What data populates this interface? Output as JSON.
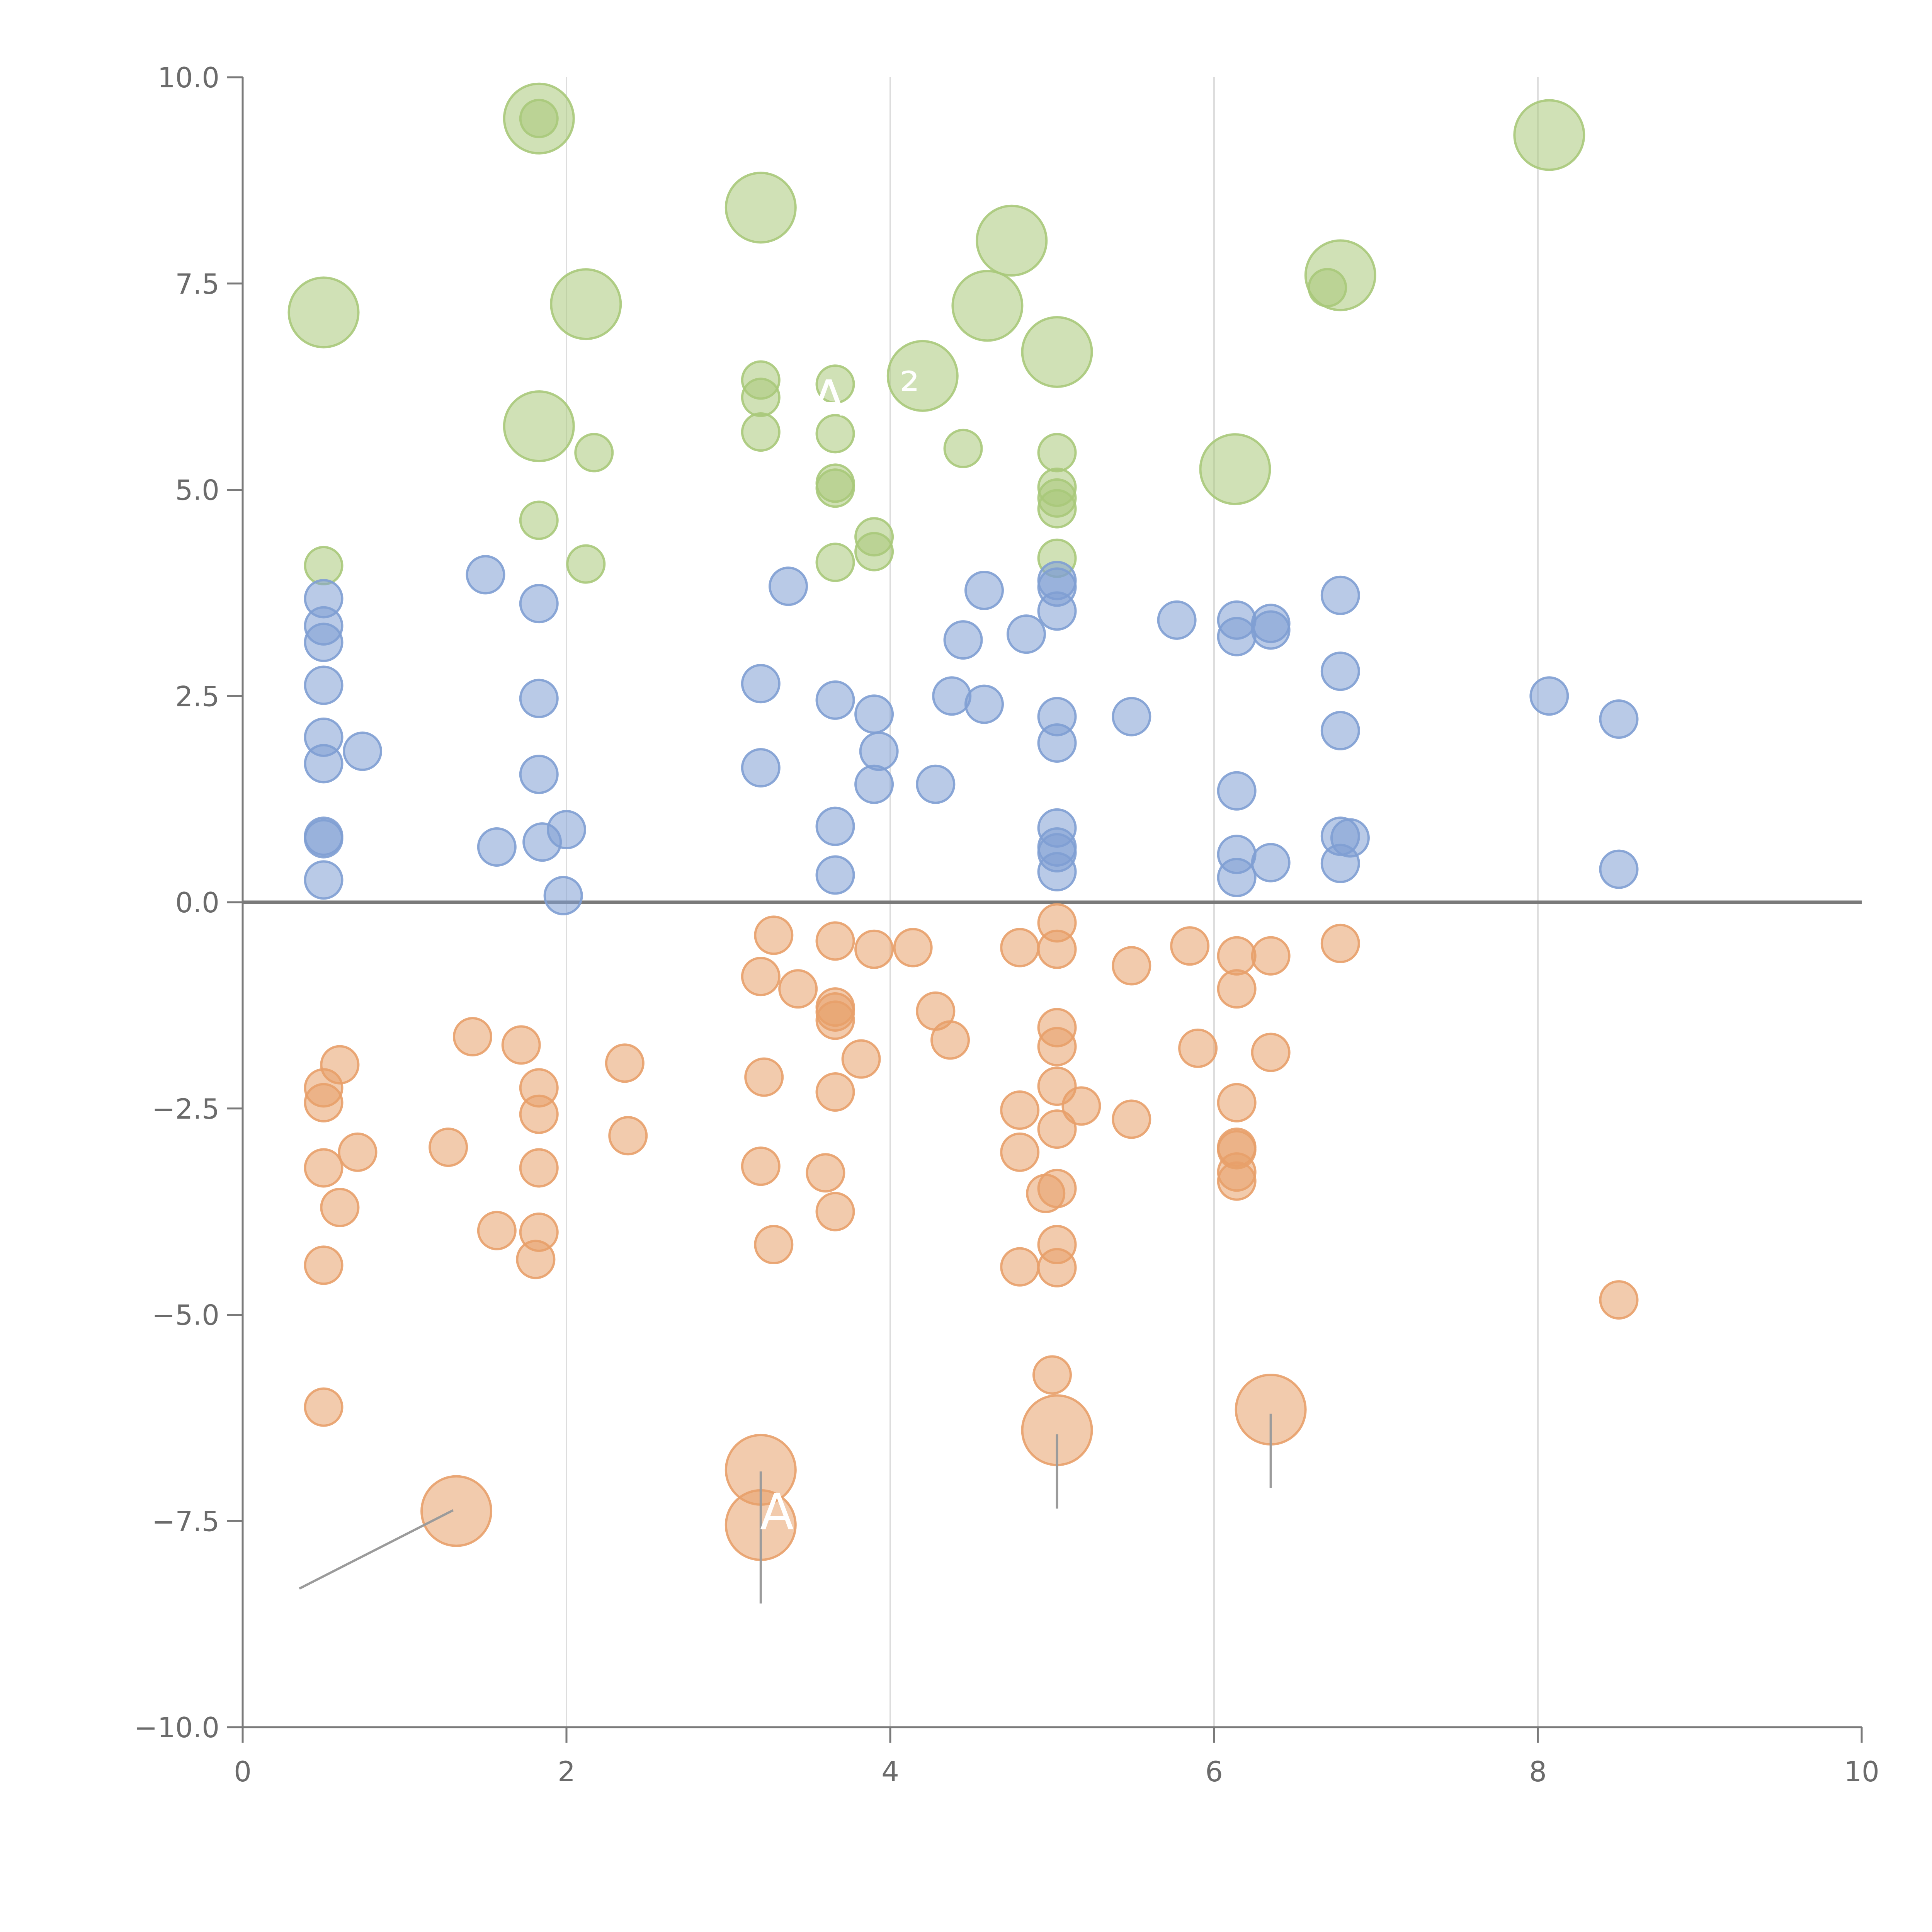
{
  "chart_data": {
    "type": "scatter",
    "title": "",
    "xlabel": "",
    "ylabel": "",
    "xlim": [
      0,
      10
    ],
    "ylim": [
      -10,
      10
    ],
    "x_ticks": [
      0,
      2,
      4,
      6,
      8,
      10
    ],
    "x_tick_labels": [
      "0",
      "2",
      "4",
      "6",
      "8",
      "10"
    ],
    "y_ticks": [
      10,
      7.5,
      5,
      2.5,
      0,
      -2.5,
      -5,
      -7.5,
      -10
    ],
    "y_tick_labels": [
      "10.0",
      "7.5",
      "5.0",
      "2.5",
      "0.0",
      "−2.5",
      "−5.0",
      "−7.5",
      "−10.0"
    ],
    "vertical_gridlines_at": [
      2,
      4,
      6,
      8
    ],
    "zero_line": 0,
    "colors": {
      "green": "#a9c97a",
      "blue": "#7f9fd3",
      "orange": "#e8a06a",
      "axis": "#7a7a7a",
      "grid": "#dddddd",
      "zero_line": "#7a7a7a",
      "leader": "#9b9b9b",
      "label_text": "#ffffff"
    },
    "point_labels": [
      {
        "text": "A",
        "x": 3.62,
        "y": 5.9
      },
      {
        "text": "²",
        "x": 4.12,
        "y": 6.0
      },
      {
        "text": "A",
        "x": 3.3,
        "y": -7.6
      }
    ],
    "series": [
      {
        "name": "green",
        "color": "#a9c97a",
        "points": [
          {
            "x": 0.5,
            "y": 7.15,
            "s": "L"
          },
          {
            "x": 1.83,
            "y": 9.5,
            "s": "L"
          },
          {
            "x": 1.83,
            "y": 9.5,
            "s": "S"
          },
          {
            "x": 2.12,
            "y": 7.25,
            "s": "L"
          },
          {
            "x": 1.83,
            "y": 5.77,
            "s": "L"
          },
          {
            "x": 3.2,
            "y": 8.42,
            "s": "L"
          },
          {
            "x": 4.2,
            "y": 6.38,
            "s": "L"
          },
          {
            "x": 4.6,
            "y": 7.23,
            "s": "L"
          },
          {
            "x": 4.75,
            "y": 8.02,
            "s": "L"
          },
          {
            "x": 5.03,
            "y": 6.67,
            "s": "L"
          },
          {
            "x": 6.13,
            "y": 5.25,
            "s": "L"
          },
          {
            "x": 6.78,
            "y": 7.6,
            "s": "L"
          },
          {
            "x": 8.07,
            "y": 9.3,
            "s": "L"
          },
          {
            "x": 6.7,
            "y": 7.45,
            "s": "S"
          },
          {
            "x": 0.5,
            "y": 4.08,
            "s": "S"
          },
          {
            "x": 1.83,
            "y": 4.63,
            "s": "S"
          },
          {
            "x": 2.17,
            "y": 5.45,
            "s": "S"
          },
          {
            "x": 2.12,
            "y": 4.1,
            "s": "S"
          },
          {
            "x": 3.2,
            "y": 6.33,
            "s": "S"
          },
          {
            "x": 3.2,
            "y": 6.12,
            "s": "S"
          },
          {
            "x": 3.2,
            "y": 5.7,
            "s": "S"
          },
          {
            "x": 3.66,
            "y": 6.28,
            "s": "S"
          },
          {
            "x": 3.66,
            "y": 5.68,
            "s": "S"
          },
          {
            "x": 3.66,
            "y": 5.08,
            "s": "S"
          },
          {
            "x": 3.66,
            "y": 5.02,
            "s": "S"
          },
          {
            "x": 3.66,
            "y": 4.12,
            "s": "S"
          },
          {
            "x": 3.9,
            "y": 4.43,
            "s": "S"
          },
          {
            "x": 3.9,
            "y": 4.25,
            "s": "S"
          },
          {
            "x": 4.45,
            "y": 5.5,
            "s": "S"
          },
          {
            "x": 5.03,
            "y": 5.45,
            "s": "S"
          },
          {
            "x": 5.03,
            "y": 5.03,
            "s": "S"
          },
          {
            "x": 5.03,
            "y": 4.9,
            "s": "S"
          },
          {
            "x": 5.03,
            "y": 4.77,
            "s": "S"
          },
          {
            "x": 5.03,
            "y": 4.17,
            "s": "S"
          }
        ]
      },
      {
        "name": "blue",
        "color": "#7f9fd3",
        "points": [
          {
            "x": 0.5,
            "y": 3.68,
            "s": "S"
          },
          {
            "x": 0.5,
            "y": 3.35,
            "s": "S"
          },
          {
            "x": 0.5,
            "y": 3.15,
            "s": "S"
          },
          {
            "x": 0.5,
            "y": 2.63,
            "s": "S"
          },
          {
            "x": 0.5,
            "y": 2.0,
            "s": "S"
          },
          {
            "x": 0.5,
            "y": 1.68,
            "s": "S"
          },
          {
            "x": 0.5,
            "y": 0.8,
            "s": "S"
          },
          {
            "x": 0.5,
            "y": 0.77,
            "s": "S"
          },
          {
            "x": 0.5,
            "y": 0.27,
            "s": "S"
          },
          {
            "x": 0.74,
            "y": 1.83,
            "s": "S"
          },
          {
            "x": 1.5,
            "y": 3.97,
            "s": "S"
          },
          {
            "x": 1.57,
            "y": 0.67,
            "s": "S"
          },
          {
            "x": 1.83,
            "y": 3.62,
            "s": "S"
          },
          {
            "x": 1.83,
            "y": 2.47,
            "s": "S"
          },
          {
            "x": 1.83,
            "y": 1.55,
            "s": "S"
          },
          {
            "x": 1.85,
            "y": 0.73,
            "s": "S"
          },
          {
            "x": 2.0,
            "y": 0.88,
            "s": "S"
          },
          {
            "x": 1.98,
            "y": 0.08,
            "s": "S"
          },
          {
            "x": 3.2,
            "y": 2.65,
            "s": "S"
          },
          {
            "x": 3.2,
            "y": 1.63,
            "s": "S"
          },
          {
            "x": 3.37,
            "y": 3.83,
            "s": "S"
          },
          {
            "x": 3.66,
            "y": 2.45,
            "s": "S"
          },
          {
            "x": 3.66,
            "y": 0.92,
            "s": "S"
          },
          {
            "x": 3.66,
            "y": 0.33,
            "s": "S"
          },
          {
            "x": 3.9,
            "y": 2.28,
            "s": "S"
          },
          {
            "x": 3.93,
            "y": 1.83,
            "s": "S"
          },
          {
            "x": 3.9,
            "y": 1.43,
            "s": "S"
          },
          {
            "x": 4.28,
            "y": 1.43,
            "s": "S"
          },
          {
            "x": 4.38,
            "y": 2.5,
            "s": "S"
          },
          {
            "x": 4.45,
            "y": 3.18,
            "s": "S"
          },
          {
            "x": 4.58,
            "y": 3.78,
            "s": "S"
          },
          {
            "x": 4.58,
            "y": 2.4,
            "s": "S"
          },
          {
            "x": 4.84,
            "y": 3.25,
            "s": "S"
          },
          {
            "x": 5.03,
            "y": 3.9,
            "s": "S"
          },
          {
            "x": 5.03,
            "y": 3.82,
            "s": "S"
          },
          {
            "x": 5.03,
            "y": 3.53,
            "s": "S"
          },
          {
            "x": 5.03,
            "y": 2.25,
            "s": "S"
          },
          {
            "x": 5.03,
            "y": 1.93,
            "s": "S"
          },
          {
            "x": 5.03,
            "y": 0.9,
            "s": "S"
          },
          {
            "x": 5.03,
            "y": 0.67,
            "s": "S"
          },
          {
            "x": 5.03,
            "y": 0.6,
            "s": "S"
          },
          {
            "x": 5.03,
            "y": 0.37,
            "s": "S"
          },
          {
            "x": 5.49,
            "y": 2.25,
            "s": "S"
          },
          {
            "x": 5.77,
            "y": 3.42,
            "s": "S"
          },
          {
            "x": 6.14,
            "y": 3.42,
            "s": "S"
          },
          {
            "x": 6.14,
            "y": 3.22,
            "s": "S"
          },
          {
            "x": 6.14,
            "y": 1.35,
            "s": "S"
          },
          {
            "x": 6.14,
            "y": 0.58,
            "s": "S"
          },
          {
            "x": 6.14,
            "y": 0.3,
            "s": "S"
          },
          {
            "x": 6.35,
            "y": 3.38,
            "s": "S"
          },
          {
            "x": 6.35,
            "y": 3.3,
            "s": "S"
          },
          {
            "x": 6.35,
            "y": 0.48,
            "s": "S"
          },
          {
            "x": 6.78,
            "y": 3.72,
            "s": "S"
          },
          {
            "x": 6.78,
            "y": 2.8,
            "s": "S"
          },
          {
            "x": 6.78,
            "y": 2.08,
            "s": "S"
          },
          {
            "x": 6.78,
            "y": 0.8,
            "s": "S"
          },
          {
            "x": 6.84,
            "y": 0.78,
            "s": "S"
          },
          {
            "x": 6.78,
            "y": 0.47,
            "s": "S"
          },
          {
            "x": 8.07,
            "y": 2.5,
            "s": "S"
          },
          {
            "x": 8.5,
            "y": 2.22,
            "s": "S"
          },
          {
            "x": 8.5,
            "y": 0.4,
            "s": "S"
          }
        ]
      },
      {
        "name": "orange",
        "color": "#e8a06a",
        "points": [
          {
            "x": 1.32,
            "y": -7.38,
            "s": "L"
          },
          {
            "x": 3.2,
            "y": -6.88,
            "s": "L"
          },
          {
            "x": 3.2,
            "y": -7.55,
            "s": "L"
          },
          {
            "x": 5.03,
            "y": -6.4,
            "s": "L"
          },
          {
            "x": 6.35,
            "y": -6.15,
            "s": "L"
          },
          {
            "x": 0.5,
            "y": -2.25,
            "s": "S"
          },
          {
            "x": 0.5,
            "y": -2.43,
            "s": "S"
          },
          {
            "x": 0.6,
            "y": -1.97,
            "s": "S"
          },
          {
            "x": 0.5,
            "y": -3.22,
            "s": "S"
          },
          {
            "x": 0.71,
            "y": -3.03,
            "s": "S"
          },
          {
            "x": 0.6,
            "y": -3.7,
            "s": "S"
          },
          {
            "x": 0.5,
            "y": -4.4,
            "s": "S"
          },
          {
            "x": 0.5,
            "y": -6.12,
            "s": "S"
          },
          {
            "x": 1.27,
            "y": -2.97,
            "s": "S"
          },
          {
            "x": 1.42,
            "y": -1.63,
            "s": "S"
          },
          {
            "x": 1.72,
            "y": -1.73,
            "s": "S"
          },
          {
            "x": 1.57,
            "y": -3.98,
            "s": "S"
          },
          {
            "x": 1.83,
            "y": -2.25,
            "s": "S"
          },
          {
            "x": 1.83,
            "y": -2.57,
            "s": "S"
          },
          {
            "x": 1.83,
            "y": -3.22,
            "s": "S"
          },
          {
            "x": 1.83,
            "y": -4.0,
            "s": "S"
          },
          {
            "x": 1.81,
            "y": -4.33,
            "s": "S"
          },
          {
            "x": 2.36,
            "y": -1.95,
            "s": "S"
          },
          {
            "x": 2.38,
            "y": -2.83,
            "s": "S"
          },
          {
            "x": 3.2,
            "y": -0.9,
            "s": "S"
          },
          {
            "x": 3.22,
            "y": -2.12,
            "s": "S"
          },
          {
            "x": 3.2,
            "y": -3.2,
            "s": "S"
          },
          {
            "x": 3.28,
            "y": -4.15,
            "s": "S"
          },
          {
            "x": 3.28,
            "y": -0.4,
            "s": "S"
          },
          {
            "x": 3.43,
            "y": -1.05,
            "s": "S"
          },
          {
            "x": 3.6,
            "y": -3.28,
            "s": "S"
          },
          {
            "x": 3.66,
            "y": -0.47,
            "s": "S"
          },
          {
            "x": 3.66,
            "y": -1.27,
            "s": "S"
          },
          {
            "x": 3.66,
            "y": -1.33,
            "s": "S"
          },
          {
            "x": 3.66,
            "y": -1.43,
            "s": "S"
          },
          {
            "x": 3.66,
            "y": -2.3,
            "s": "S"
          },
          {
            "x": 3.66,
            "y": -3.75,
            "s": "S"
          },
          {
            "x": 3.82,
            "y": -1.9,
            "s": "S"
          },
          {
            "x": 3.9,
            "y": -0.57,
            "s": "S"
          },
          {
            "x": 4.14,
            "y": -0.55,
            "s": "S"
          },
          {
            "x": 4.28,
            "y": -1.32,
            "s": "S"
          },
          {
            "x": 4.37,
            "y": -1.67,
            "s": "S"
          },
          {
            "x": 4.8,
            "y": -0.55,
            "s": "S"
          },
          {
            "x": 4.8,
            "y": -2.52,
            "s": "S"
          },
          {
            "x": 4.8,
            "y": -3.03,
            "s": "S"
          },
          {
            "x": 4.8,
            "y": -4.42,
            "s": "S"
          },
          {
            "x": 4.96,
            "y": -3.53,
            "s": "S"
          },
          {
            "x": 5.03,
            "y": -0.25,
            "s": "S"
          },
          {
            "x": 5.03,
            "y": -0.57,
            "s": "S"
          },
          {
            "x": 5.03,
            "y": -1.52,
            "s": "S"
          },
          {
            "x": 5.03,
            "y": -1.75,
            "s": "S"
          },
          {
            "x": 5.03,
            "y": -2.23,
            "s": "S"
          },
          {
            "x": 5.03,
            "y": -2.75,
            "s": "S"
          },
          {
            "x": 5.03,
            "y": -3.47,
            "s": "S"
          },
          {
            "x": 5.03,
            "y": -4.15,
            "s": "S"
          },
          {
            "x": 5.03,
            "y": -4.43,
            "s": "S"
          },
          {
            "x": 5.0,
            "y": -5.73,
            "s": "S"
          },
          {
            "x": 5.18,
            "y": -2.47,
            "s": "S"
          },
          {
            "x": 5.49,
            "y": -0.77,
            "s": "S"
          },
          {
            "x": 5.49,
            "y": -2.63,
            "s": "S"
          },
          {
            "x": 5.85,
            "y": -0.53,
            "s": "S"
          },
          {
            "x": 5.9,
            "y": -1.77,
            "s": "S"
          },
          {
            "x": 6.14,
            "y": -0.65,
            "s": "S"
          },
          {
            "x": 6.14,
            "y": -1.05,
            "s": "S"
          },
          {
            "x": 6.14,
            "y": -2.43,
            "s": "S"
          },
          {
            "x": 6.14,
            "y": -2.97,
            "s": "S"
          },
          {
            "x": 6.14,
            "y": -3.0,
            "s": "S"
          },
          {
            "x": 6.14,
            "y": -3.27,
            "s": "S"
          },
          {
            "x": 6.14,
            "y": -3.38,
            "s": "S"
          },
          {
            "x": 6.35,
            "y": -0.65,
            "s": "S"
          },
          {
            "x": 6.35,
            "y": -1.82,
            "s": "S"
          },
          {
            "x": 6.78,
            "y": -0.5,
            "s": "S"
          },
          {
            "x": 8.5,
            "y": -4.82,
            "s": "S"
          }
        ]
      }
    ]
  }
}
